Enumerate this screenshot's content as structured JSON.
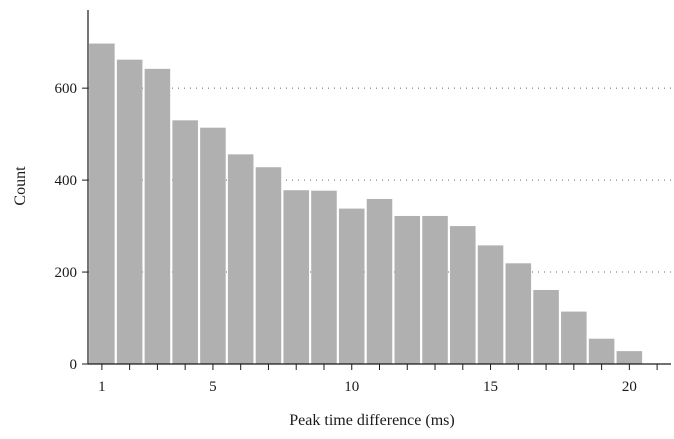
{
  "chart_data": {
    "type": "bar",
    "title": "",
    "xlabel": "Peak time difference (ms)",
    "ylabel": "Count",
    "x": [
      1,
      2,
      3,
      4,
      5,
      6,
      7,
      8,
      9,
      10,
      11,
      12,
      13,
      14,
      15,
      16,
      17,
      18,
      19,
      20
    ],
    "values": [
      697,
      662,
      642,
      530,
      514,
      456,
      428,
      378,
      377,
      338,
      359,
      322,
      322,
      300,
      258,
      219,
      161,
      114,
      55,
      28
    ],
    "xlim": [
      0.5,
      21.5
    ],
    "ylim": [
      0,
      770
    ],
    "x_ticks": [
      "1",
      "5",
      "10",
      "15",
      "20"
    ],
    "y_ticks": [
      "0",
      "200",
      "400",
      "600"
    ],
    "grid": "dotted horizontal lines at 200, 400, 600",
    "bar_color": "#b0b0b0",
    "axis_color": "#1a1a1a",
    "grid_color": "#666666"
  }
}
